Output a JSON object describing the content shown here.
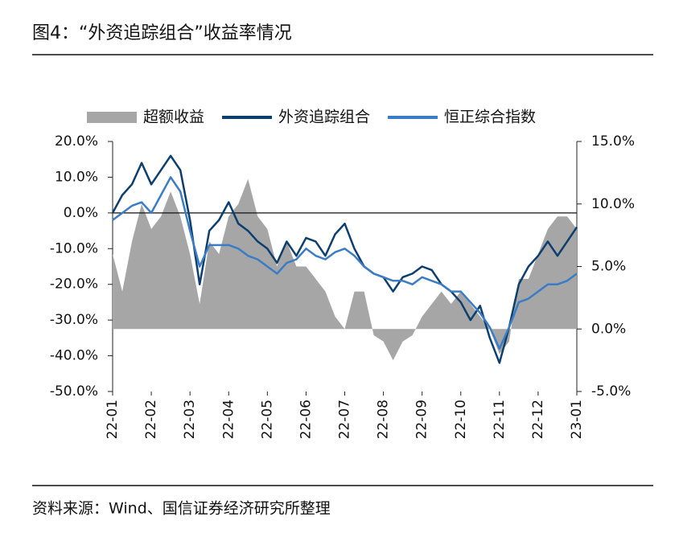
{
  "chart_data": {
    "type": "line",
    "title": "图4：“外资追踪组合”收益率情况",
    "source": "资料来源：Wind、国信证券经济研究所整理",
    "categories": [
      "22-01",
      null,
      null,
      null,
      "22-02",
      null,
      null,
      null,
      "22-03",
      null,
      null,
      null,
      "22-04",
      null,
      null,
      null,
      "22-05",
      null,
      null,
      null,
      "22-06",
      null,
      null,
      null,
      "22-07",
      null,
      null,
      null,
      "22-08",
      null,
      null,
      null,
      "22-09",
      null,
      null,
      null,
      "22-10",
      null,
      null,
      null,
      "22-11",
      null,
      null,
      null,
      "22-12",
      null,
      null,
      null,
      "23-01"
    ],
    "series": [
      {
        "name": "超额收益",
        "kind": "area",
        "axis": "y2",
        "color": "#a6a6a6",
        "values": [
          6,
          3,
          7,
          10,
          8,
          9,
          11,
          9,
          6,
          2,
          7,
          6,
          9,
          10,
          12,
          9,
          8,
          5,
          7,
          5,
          5,
          4,
          3,
          1,
          0,
          3,
          3,
          -0.5,
          -1,
          -2.5,
          -1,
          -0.5,
          1,
          2,
          3,
          2,
          3,
          2,
          1,
          0,
          -2,
          -1,
          4,
          4,
          6,
          8,
          9,
          9,
          8
        ]
      },
      {
        "name": "外资追踪组合",
        "kind": "line",
        "axis": "y",
        "color": "#0d3f6e",
        "values": [
          0,
          5,
          8,
          14,
          8,
          12,
          16,
          12,
          -2,
          -20,
          -5,
          -2,
          3,
          -3,
          -5,
          -8,
          -10,
          -14,
          -8,
          -12,
          -7,
          -8,
          -12,
          -6,
          -3,
          -10,
          -15,
          -17,
          -18,
          -22,
          -18,
          -17,
          -15,
          -16,
          -20,
          -22,
          -25,
          -30,
          -26,
          -35,
          -42,
          -32,
          -20,
          -15,
          -12,
          -8,
          -12,
          -8,
          -4
        ]
      },
      {
        "name": "恒正综合指数",
        "kind": "line",
        "axis": "y",
        "color": "#3b7cc6",
        "values": [
          -2,
          0,
          2,
          3,
          0,
          5,
          10,
          6,
          -5,
          -15,
          -9,
          -9,
          -9,
          -10,
          -12,
          -13,
          -15,
          -17,
          -14,
          -13,
          -10,
          -12,
          -13,
          -11,
          -10,
          -12,
          -15,
          -17,
          -18,
          -19,
          -19,
          -20,
          -18,
          -19,
          -20,
          -22,
          -22,
          -25,
          -28,
          -32,
          -38,
          -32,
          -25,
          -24,
          -22,
          -20,
          -20,
          -19,
          -17
        ]
      }
    ],
    "ylim": [
      -50,
      20
    ],
    "yticks": [
      {
        "value": 20,
        "label": "20.0%"
      },
      {
        "value": 10,
        "label": "10.0%"
      },
      {
        "value": 0,
        "label": "0.0%"
      },
      {
        "value": -10,
        "label": "-10.0%"
      },
      {
        "value": -20,
        "label": "-20.0%"
      },
      {
        "value": -30,
        "label": "-30.0%"
      },
      {
        "value": -40,
        "label": "-40.0%"
      },
      {
        "value": -50,
        "label": "-50.0%"
      }
    ],
    "y2lim": [
      -5,
      15
    ],
    "y2ticks": [
      {
        "value": 15,
        "label": "15.0%"
      },
      {
        "value": 10,
        "label": "10.0%"
      },
      {
        "value": 5,
        "label": "5.0%"
      },
      {
        "value": 0,
        "label": "0.0%"
      },
      {
        "value": -5,
        "label": "-5.0%"
      }
    ]
  }
}
